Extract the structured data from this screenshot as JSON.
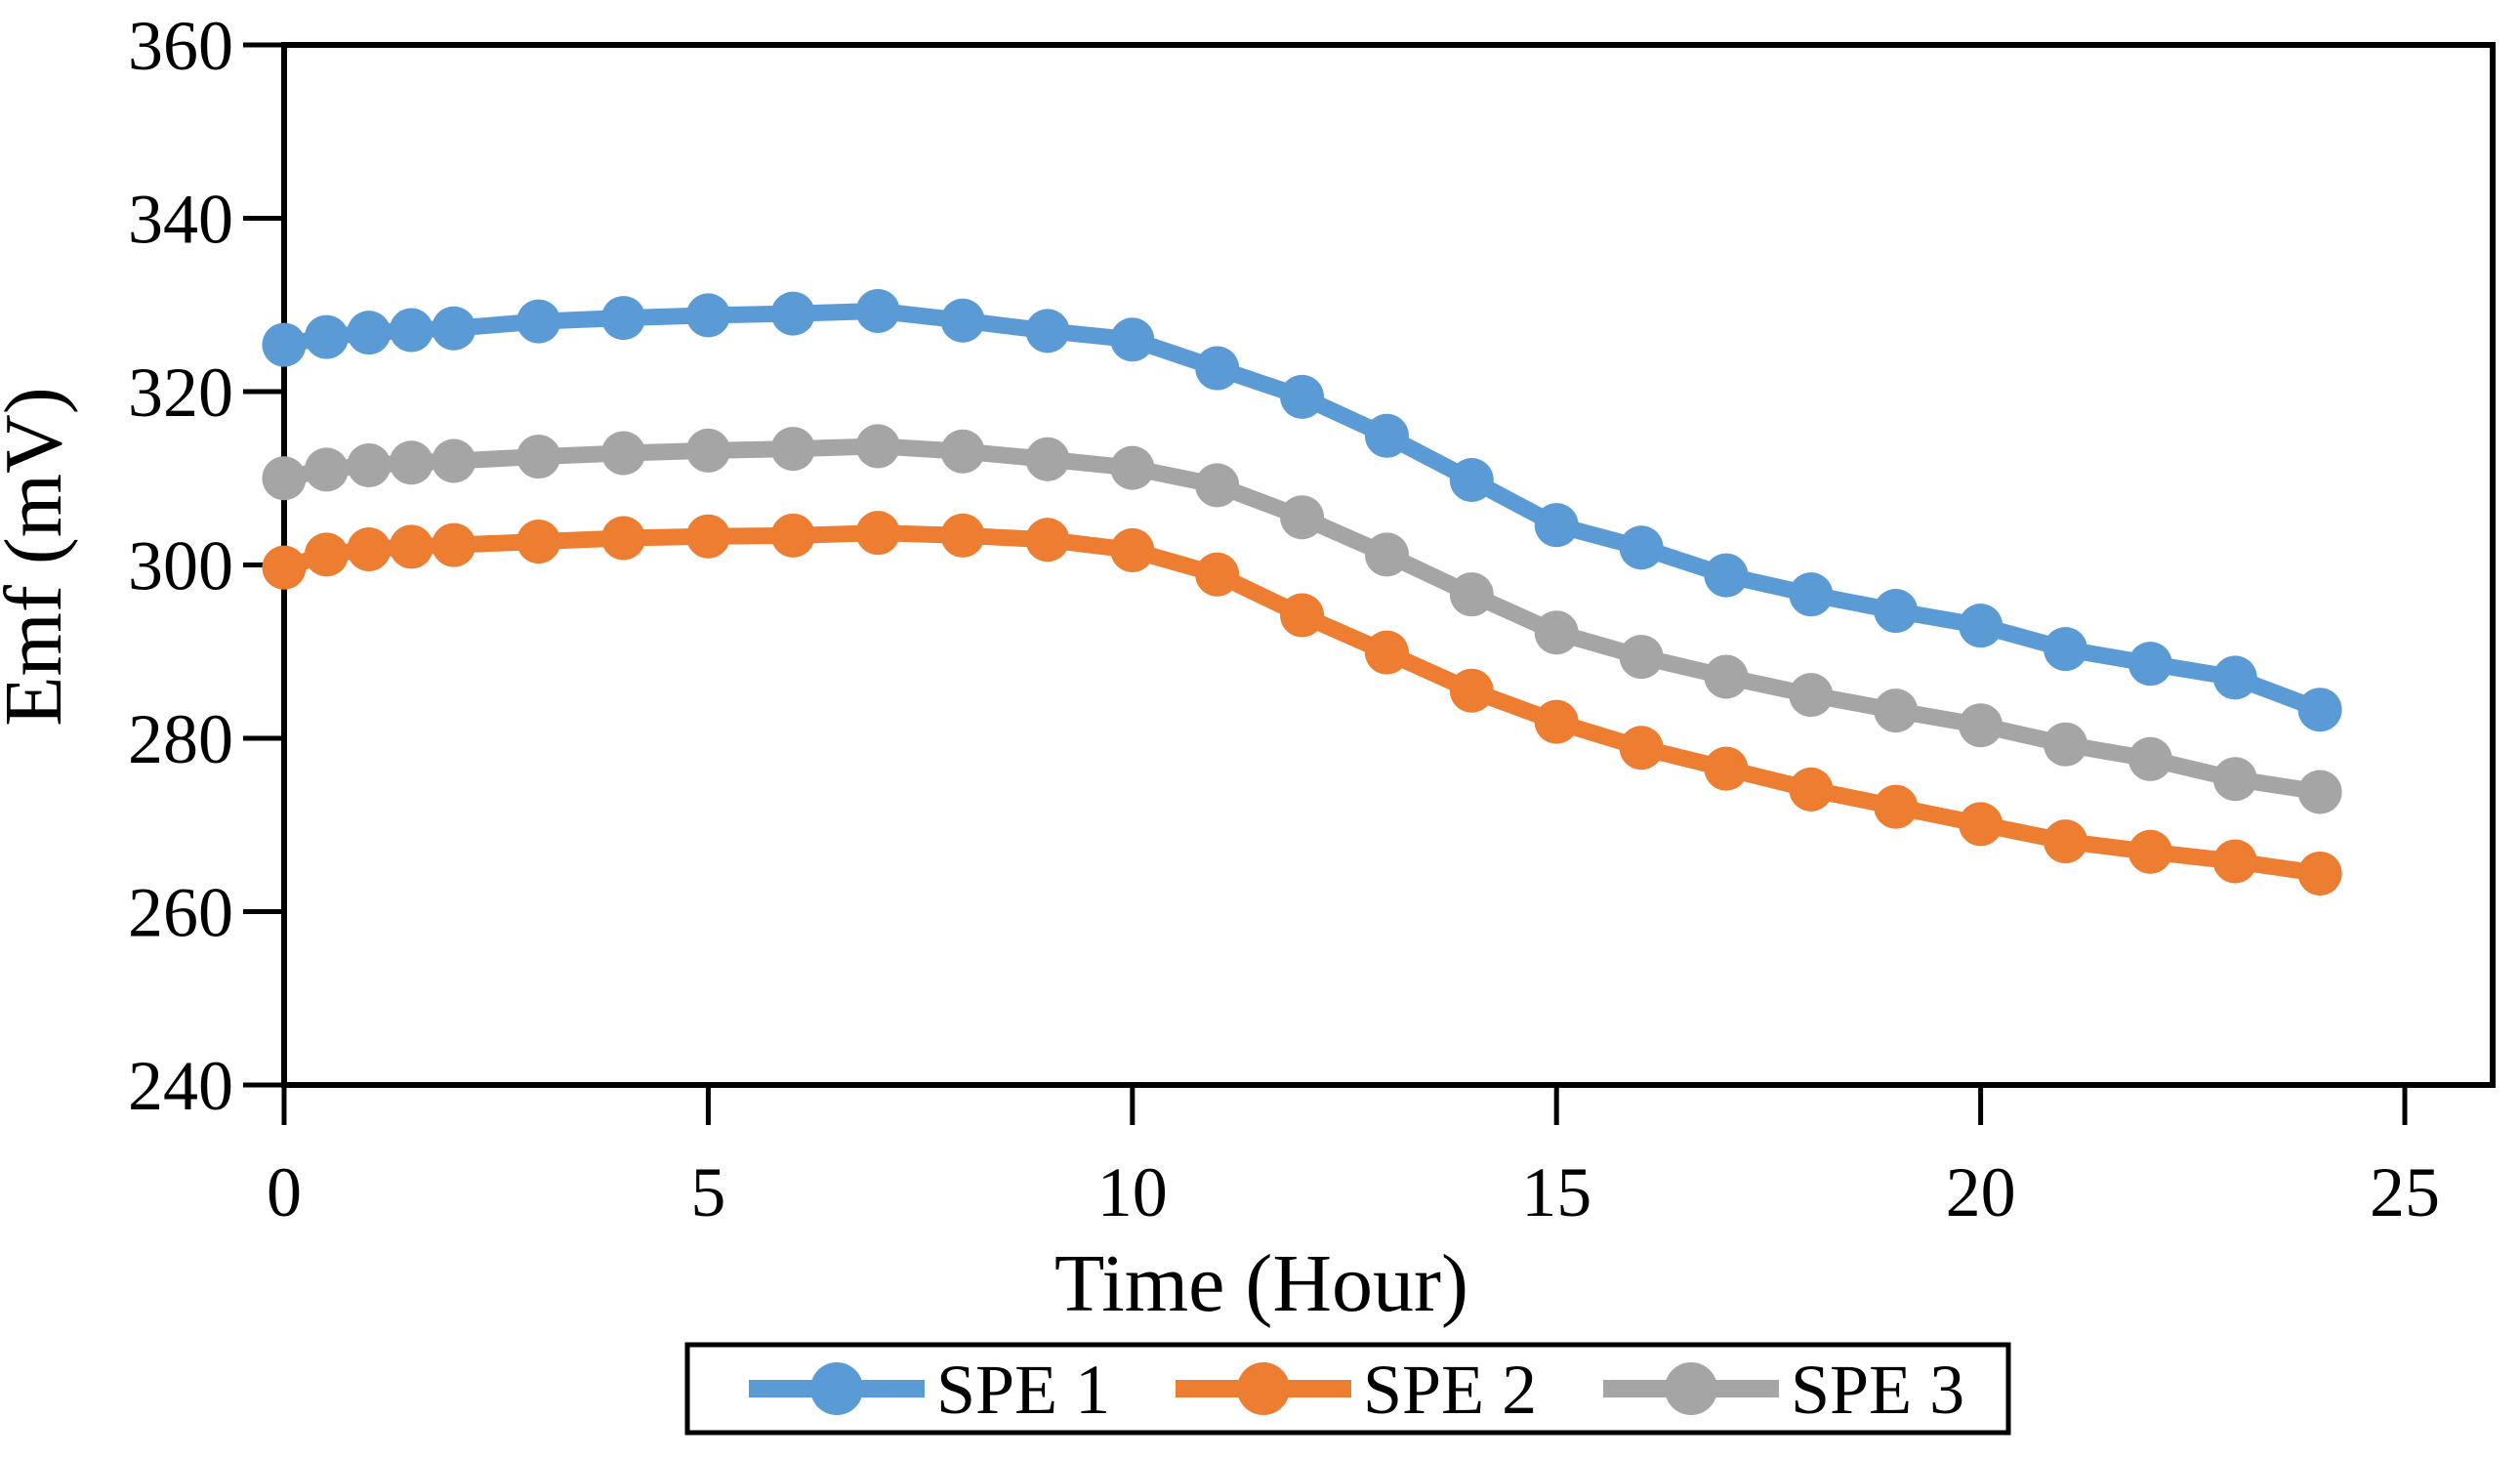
{
  "chart_data": {
    "type": "line",
    "title": "",
    "xlabel": "Time (Hour)",
    "ylabel": "Emf (mV)",
    "x": [
      0,
      0.5,
      1,
      1.5,
      2,
      3,
      4,
      5,
      6,
      7,
      8,
      9,
      10,
      11,
      12,
      13,
      14,
      15,
      16,
      17,
      18,
      19,
      20,
      21,
      22,
      23,
      24
    ],
    "series": [
      {
        "name": "SPE 1",
        "color": "#5B9BD5",
        "values": [
          325.4,
          326.3,
          326.8,
          327.1,
          327.3,
          328.1,
          328.5,
          328.8,
          329.0,
          329.3,
          328.2,
          327.0,
          326.0,
          322.7,
          319.4,
          314.9,
          309.8,
          304.6,
          302.0,
          298.8,
          296.6,
          294.7,
          293.0,
          290.3,
          288.6,
          287.0,
          283.3
        ]
      },
      {
        "name": "SPE 2",
        "color": "#ED7D31",
        "values": [
          299.7,
          301.2,
          301.8,
          302.1,
          302.3,
          302.7,
          303.1,
          303.3,
          303.4,
          303.7,
          303.4,
          302.9,
          301.7,
          298.9,
          294.2,
          289.9,
          285.5,
          281.9,
          278.9,
          276.5,
          274.1,
          272.1,
          270.1,
          268.1,
          266.9,
          265.8,
          264.4
        ]
      },
      {
        "name": "SPE 3",
        "color": "#A5A5A5",
        "values": [
          310.0,
          311.0,
          311.5,
          311.8,
          312.0,
          312.5,
          312.9,
          313.2,
          313.4,
          313.7,
          313.1,
          312.2,
          311.2,
          309.2,
          305.5,
          301.2,
          296.6,
          292.2,
          289.4,
          287.1,
          285.0,
          283.2,
          281.5,
          279.3,
          277.6,
          275.3,
          273.8
        ]
      }
    ],
    "x_ticks": [
      0,
      5,
      10,
      15,
      20,
      25
    ],
    "y_ticks": [
      240,
      260,
      280,
      300,
      320,
      340,
      360
    ],
    "xlim": [
      0,
      26
    ],
    "ylim": [
      240,
      360
    ],
    "grid": false,
    "legend_position": "bottom",
    "marker": "circle",
    "axis_color": "#000000",
    "background_color": "#FFFFFF"
  }
}
